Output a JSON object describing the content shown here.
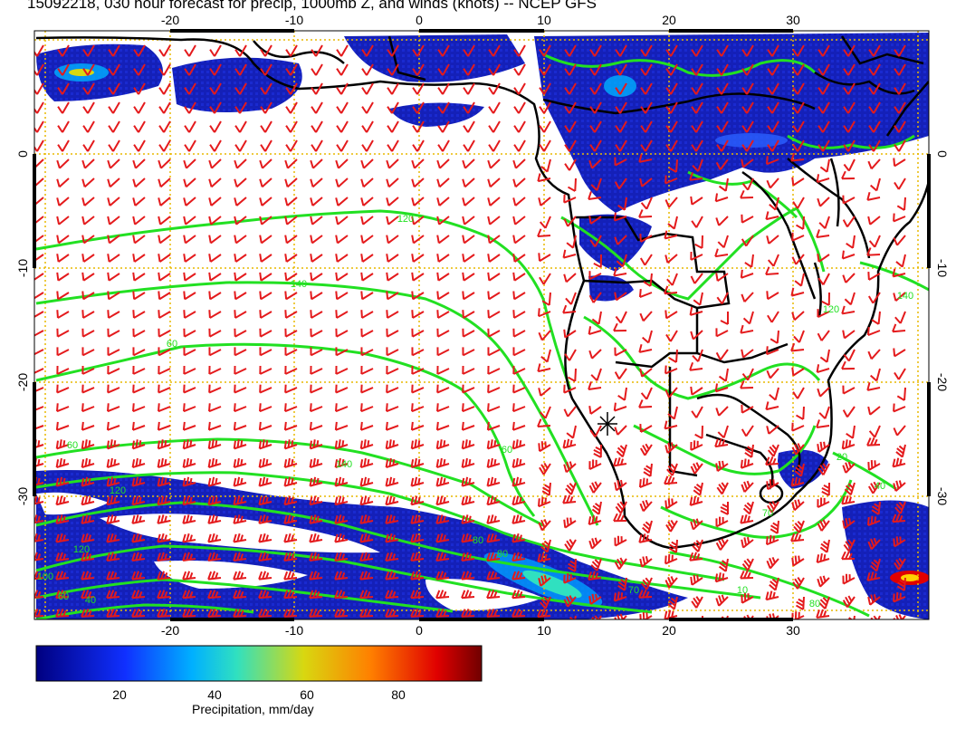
{
  "title": "15092218, 030 hour forecast for precip, 1000mb Z, and winds (knots) -- NCEP GFS",
  "map": {
    "lon_range": [
      -30,
      40
    ],
    "lat_range": [
      -40,
      10
    ],
    "lon_ticks": [
      "-20",
      "-10",
      "0",
      "10",
      "20",
      "30"
    ],
    "lat_ticks": [
      "0",
      "-10",
      "-20",
      "-30"
    ],
    "grid": true,
    "contour_labels": [
      "120",
      "140",
      "60",
      "60",
      "140",
      "60",
      "120",
      "120",
      "100",
      "60",
      "40",
      "80",
      "80",
      "70",
      "120",
      "140",
      "70",
      "20",
      "80",
      "10",
      "40"
    ]
  },
  "colors": {
    "contour": "#22e022",
    "barb": "#e41a1c",
    "coast": "#000000",
    "grid": "#e8b800"
  },
  "colorbar": {
    "label": "Precipitation, mm/day",
    "range": [
      0,
      100
    ],
    "ticks": [
      "20",
      "40",
      "60",
      "80"
    ]
  }
}
